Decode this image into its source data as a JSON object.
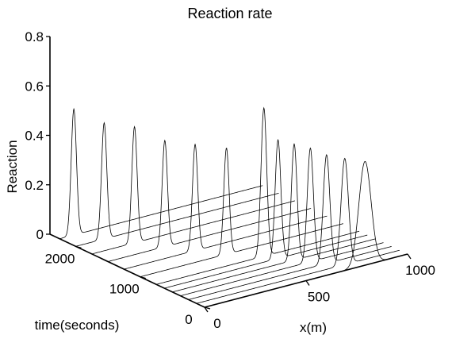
{
  "chart_data": {
    "type": "line",
    "subtype": "3d-waterfall",
    "title": "Reaction rate",
    "xlabel": "x(m)",
    "ylabel": "time(seconds)",
    "zlabel": "Reaction",
    "xlim": [
      0,
      1000
    ],
    "ylim": [
      0,
      2400
    ],
    "zlim": [
      0,
      0.8
    ],
    "x_ticks": [
      "0",
      "500",
      "1000"
    ],
    "y_ticks": [
      "0",
      "1000",
      "2000"
    ],
    "z_ticks": [
      "0",
      "0.2",
      "0.4",
      "0.6",
      "0.8"
    ],
    "grid": false,
    "series_line_color": "#000000",
    "series": [
      {
        "time": 2250,
        "peak_x": 70,
        "peak_height": 0.51,
        "peak_width": 13
      },
      {
        "time": 2000,
        "peak_x": 140,
        "peak_height": 0.47,
        "peak_width": 13
      },
      {
        "time": 1750,
        "peak_x": 210,
        "peak_height": 0.47,
        "peak_width": 13
      },
      {
        "time": 1500,
        "peak_x": 280,
        "peak_height": 0.43,
        "peak_width": 13
      },
      {
        "time": 1250,
        "peak_x": 350,
        "peak_height": 0.43,
        "peak_width": 13
      },
      {
        "time": 1000,
        "peak_x": 425,
        "peak_height": 0.43,
        "peak_width": 13
      },
      {
        "time": 750,
        "peak_x": 530,
        "peak_height": 0.6,
        "peak_width": 14
      },
      {
        "time": 625,
        "peak_x": 560,
        "peak_height": 0.48,
        "peak_width": 14
      },
      {
        "time": 500,
        "peak_x": 600,
        "peak_height": 0.47,
        "peak_width": 14
      },
      {
        "time": 375,
        "peak_x": 640,
        "peak_height": 0.46,
        "peak_width": 15
      },
      {
        "time": 250,
        "peak_x": 680,
        "peak_height": 0.44,
        "peak_width": 16
      },
      {
        "time": 125,
        "peak_x": 730,
        "peak_height": 0.43,
        "peak_width": 18
      },
      {
        "time": 0,
        "peak_x": 790,
        "peak_height": 0.42,
        "peak_width": 30
      }
    ]
  }
}
